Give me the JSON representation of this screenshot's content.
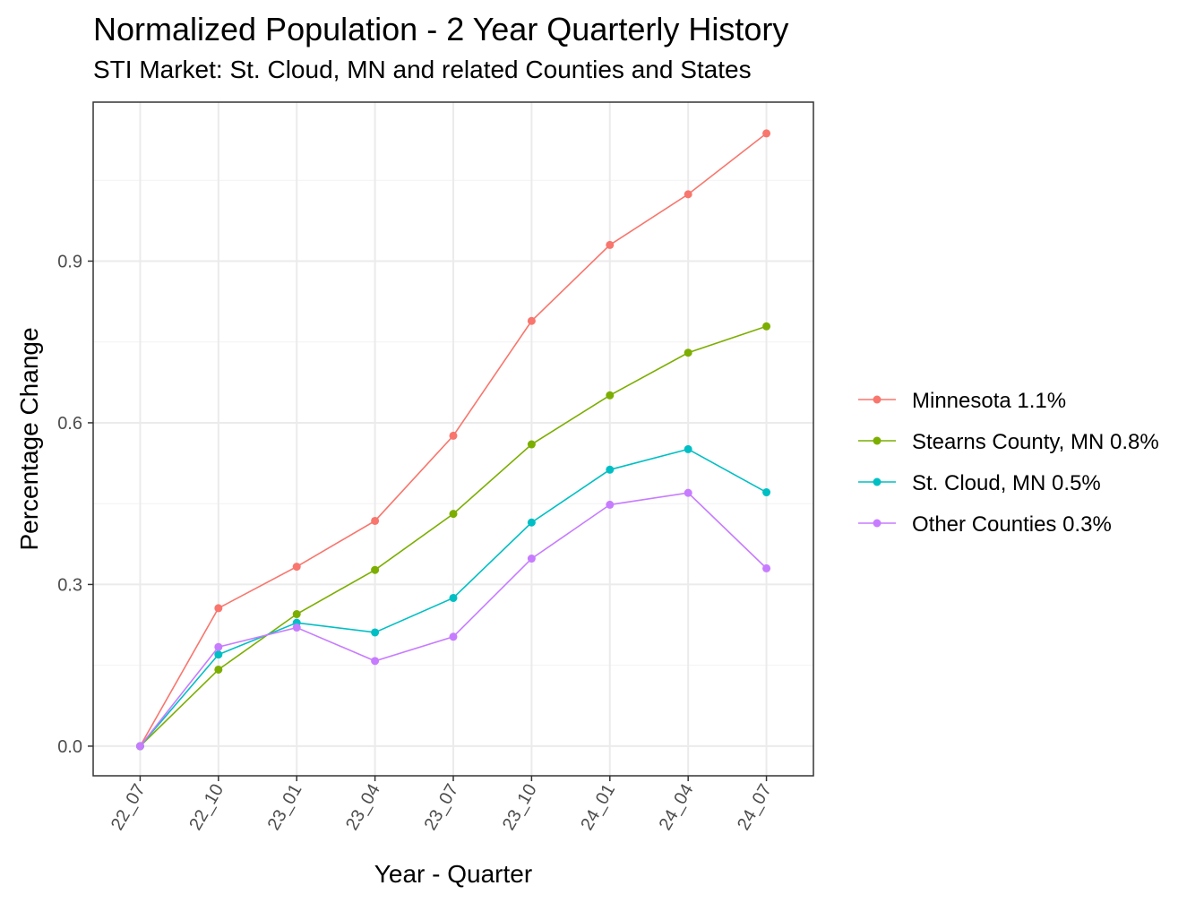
{
  "chart_data": {
    "type": "line",
    "title": "Normalized Population - 2 Year Quarterly History",
    "subtitle": "STI Market: St. Cloud, MN and related Counties and States",
    "xlabel": "Year - Quarter",
    "ylabel": "Percentage Change",
    "categories": [
      "22_07",
      "22_10",
      "23_01",
      "23_04",
      "23_07",
      "23_10",
      "24_01",
      "24_04",
      "24_07"
    ],
    "ylim": [
      -0.055,
      1.195
    ],
    "yticks": [
      0.0,
      0.3,
      0.6,
      0.9
    ],
    "ytick_labels": [
      "0.0",
      "0.3",
      "0.6",
      "0.9"
    ],
    "grid": true,
    "legend_position": "right",
    "series": [
      {
        "name": "Minnesota 1.1%",
        "color": "#F8766D",
        "values": [
          0.0,
          0.256,
          0.333,
          0.418,
          0.576,
          0.789,
          0.93,
          1.024,
          1.137
        ]
      },
      {
        "name": "Stearns County, MN 0.8%",
        "color": "#7CAE00",
        "values": [
          0.0,
          0.142,
          0.245,
          0.327,
          0.431,
          0.56,
          0.651,
          0.73,
          0.779
        ]
      },
      {
        "name": "St. Cloud, MN 0.5%",
        "color": "#00BFC4",
        "values": [
          0.0,
          0.17,
          0.229,
          0.211,
          0.275,
          0.415,
          0.513,
          0.551,
          0.471
        ]
      },
      {
        "name": "Other Counties 0.3%",
        "color": "#C77CFF",
        "values": [
          0.0,
          0.184,
          0.22,
          0.158,
          0.203,
          0.348,
          0.448,
          0.47,
          0.33
        ]
      }
    ]
  }
}
